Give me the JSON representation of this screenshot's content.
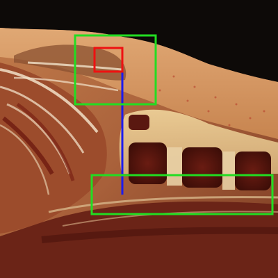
{
  "image": {
    "subject": "anatomical-cross-section",
    "colors": {
      "background": "#0d0a08",
      "skin": "#d39a66",
      "fat": "#e2b37a",
      "muscle": "#7a2a1c",
      "bone_marrow": "#5a1810",
      "cartilage": "#e8c79a"
    }
  },
  "annotations": {
    "boxes": [
      {
        "id": "upper-roi",
        "color": "#22dd22"
      },
      {
        "id": "small-roi",
        "color": "#ee1111"
      },
      {
        "id": "lower-roi",
        "color": "#22dd22"
      }
    ],
    "connector": {
      "id": "measurement-line",
      "color": "#1a1aee"
    }
  }
}
